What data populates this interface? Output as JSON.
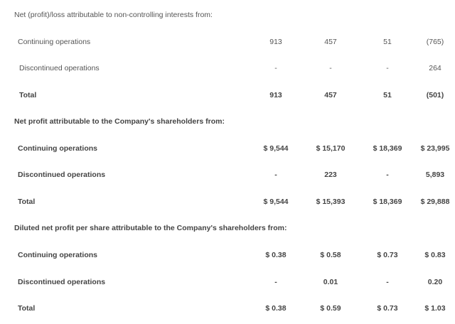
{
  "sections": [
    {
      "heading": "Net (profit)/loss attributable to non-controlling interests from:",
      "bold": false,
      "rows": [
        {
          "label": "Continuing operations",
          "values": [
            "913",
            "457",
            "51",
            "(765)"
          ]
        },
        {
          "label": "Discontinued operations",
          "values": [
            "-",
            "-",
            "-",
            "264"
          ]
        },
        {
          "label": "Total",
          "values": [
            "913",
            "457",
            "51",
            "(501)"
          ],
          "bold": true
        }
      ]
    },
    {
      "heading": "Net profit attributable to the Company's shareholders from:",
      "bold": true,
      "rows": [
        {
          "label": "Continuing operations",
          "values": [
            "$ 9,544",
            "$ 15,170",
            "$ 18,369",
            "$ 23,995"
          ]
        },
        {
          "label": "Discontinued operations",
          "values": [
            "-",
            "223",
            "-",
            "5,893"
          ]
        },
        {
          "label": "Total",
          "values": [
            "$ 9,544",
            "$ 15,393",
            "$ 18,369",
            "$ 29,888"
          ]
        }
      ]
    },
    {
      "heading": "Diluted net profit per share attributable to the Company's shareholders from:",
      "bold": true,
      "rows": [
        {
          "label": "Continuing operations",
          "values": [
            "$ 0.38",
            "$ 0.58",
            "$ 0.73",
            "$ 0.83"
          ]
        },
        {
          "label": "Discontinued operations",
          "values": [
            "-",
            "0.01",
            "-",
            "0.20"
          ]
        },
        {
          "label": "Total",
          "values": [
            "$ 0.38",
            "$ 0.59",
            "$ 0.73",
            "$ 1.03"
          ]
        }
      ]
    }
  ]
}
